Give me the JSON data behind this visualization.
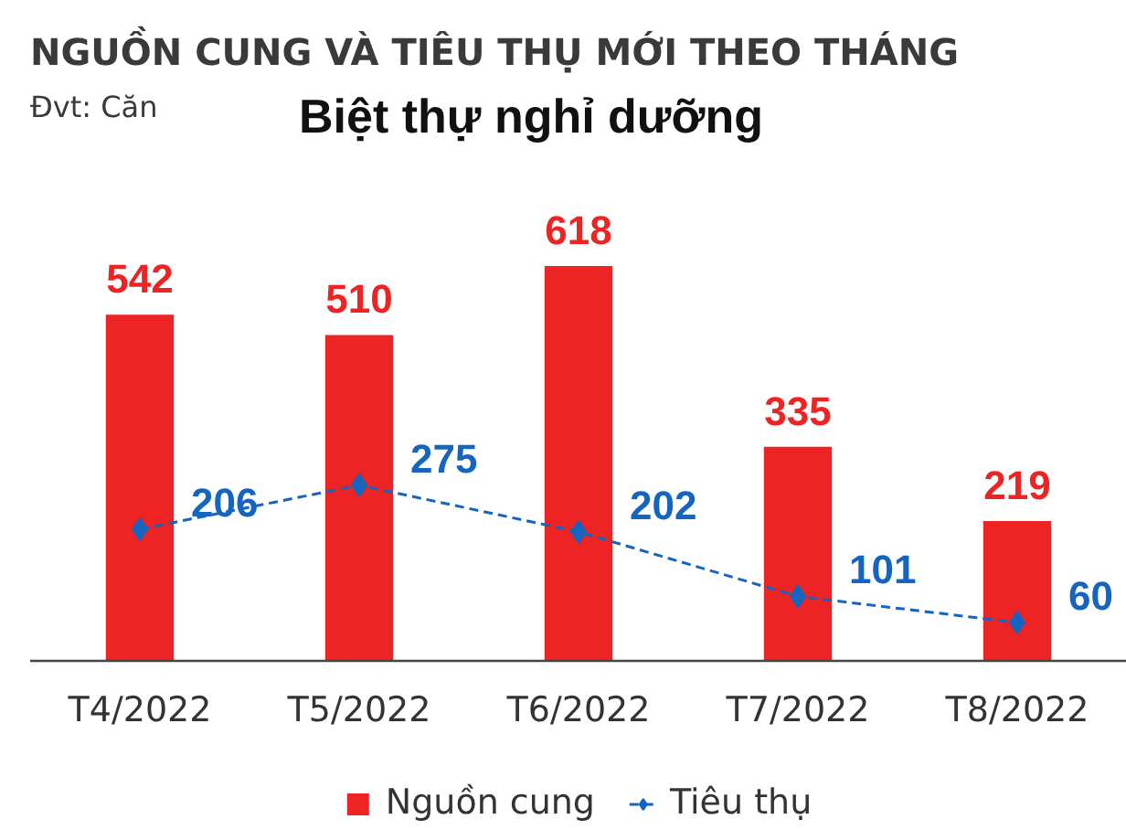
{
  "chart_data": {
    "type": "bar",
    "title": "NGUỒN CUNG VÀ TIÊU THỤ MỚI THEO THÁNG",
    "subtitle": "Biệt thự nghỉ dưỡng",
    "annotations": [
      "Đvt: Căn"
    ],
    "categories": [
      "T4/2022",
      "T5/2022",
      "T6/2022",
      "T7/2022",
      "T8/2022"
    ],
    "series": [
      {
        "name": "Nguồn cung",
        "color": "#ee2424",
        "values": [
          542,
          510,
          618,
          335,
          219
        ]
      },
      {
        "name": "Tiêu thụ",
        "type": "line",
        "color": "#1565c0",
        "values": [
          206,
          275,
          202,
          101,
          60
        ],
        "marker": "diamond",
        "line_style": "dashed"
      }
    ],
    "data_labels": true,
    "legend": "bottom",
    "grid": false
  }
}
